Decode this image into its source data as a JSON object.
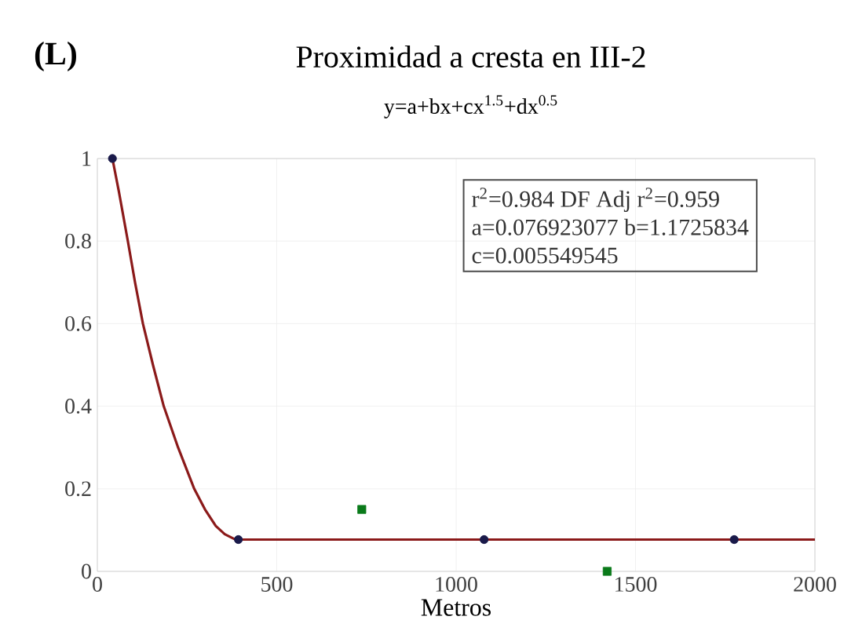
{
  "chart_data": {
    "type": "line",
    "title": "Proximidad a cresta en III-2",
    "subtitle": "y=a+bx+cx$^{1.5}$+dx$^{0.5}$",
    "xlabel": "Metros",
    "annotations": [
      "(L)",
      "r$^{2}$=0.984  DF Adj r$^{2}$=0.959",
      "a=0.076923077 b=1.1725834",
      "c=0.005549545"
    ],
    "series": [
      {
        "color": "#8b1a1a",
        "marker": "none",
        "x": [
          42,
          60,
          85,
          105,
          127,
          155,
          185,
          225,
          270,
          300,
          330,
          355,
          380,
          400,
          2000
        ],
        "values": [
          1,
          0.92,
          0.8,
          0.7,
          0.6,
          0.5,
          0.4,
          0.3,
          0.2,
          0.15,
          0.11,
          0.09,
          0.079,
          0.077,
          0.077
        ]
      },
      {
        "type": "scatter",
        "color": "#1a1a4a",
        "marker": "circle",
        "x": [
          42,
          393,
          1078,
          1775
        ],
        "values": [
          1,
          0.077,
          0.077,
          0.077
        ]
      },
      {
        "type": "scatter",
        "color": "#0a7a1a",
        "marker": "square",
        "x": [
          737,
          1421
        ],
        "values": [
          0.15,
          0
        ]
      }
    ],
    "xlim": [
      0,
      2000
    ],
    "ylim": [
      0,
      1
    ],
    "xticks": [
      0,
      500,
      1000,
      1500,
      2000
    ],
    "yticks": [
      0,
      0.2,
      0.4,
      0.6,
      0.8,
      1
    ],
    "grid": true
  }
}
